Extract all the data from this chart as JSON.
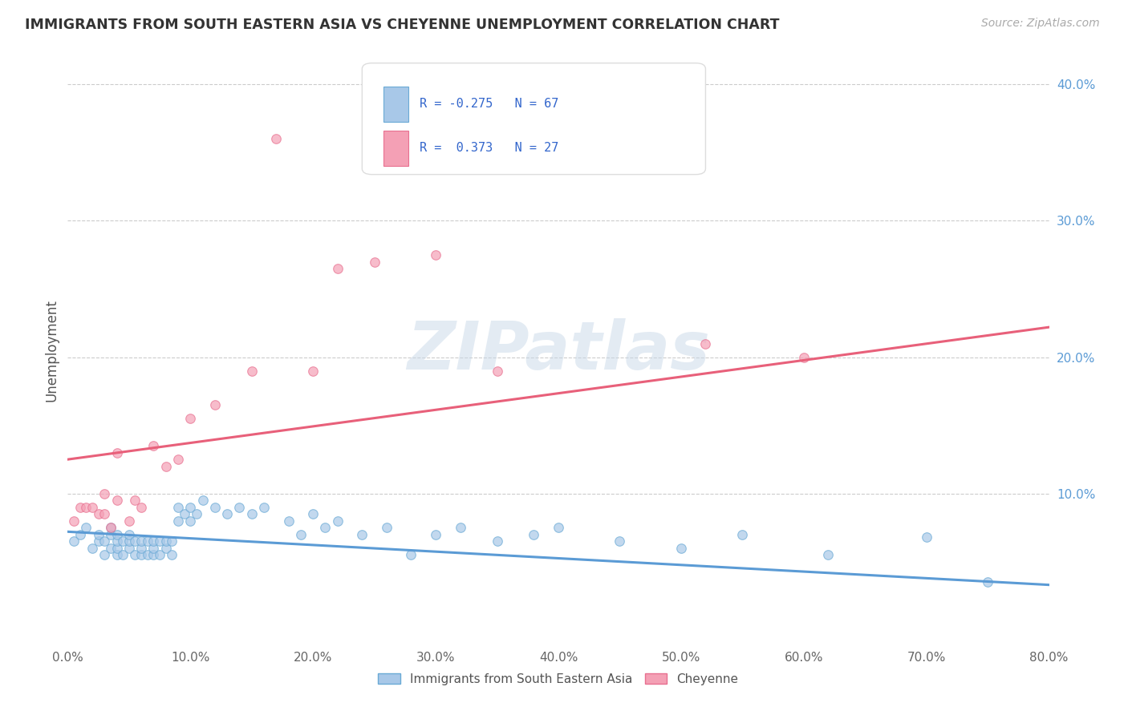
{
  "title": "IMMIGRANTS FROM SOUTH EASTERN ASIA VS CHEYENNE UNEMPLOYMENT CORRELATION CHART",
  "source_text": "Source: ZipAtlas.com",
  "ylabel": "Unemployment",
  "watermark": "ZIPatlas",
  "xlim": [
    0.0,
    0.8
  ],
  "ylim": [
    -0.01,
    0.42
  ],
  "xticks": [
    0.0,
    0.1,
    0.2,
    0.3,
    0.4,
    0.5,
    0.6,
    0.7,
    0.8
  ],
  "xtick_labels": [
    "0.0%",
    "10.0%",
    "20.0%",
    "30.0%",
    "40.0%",
    "50.0%",
    "60.0%",
    "70.0%",
    "80.0%"
  ],
  "yticks_right": [
    0.1,
    0.2,
    0.3,
    0.4
  ],
  "ytick_labels_right": [
    "10.0%",
    "20.0%",
    "30.0%",
    "40.0%"
  ],
  "blue_color": "#a8c8e8",
  "pink_color": "#f4a0b5",
  "blue_edge_color": "#6aaad5",
  "pink_edge_color": "#e87090",
  "blue_line_color": "#5b9bd5",
  "pink_line_color": "#e8607a",
  "blue_scatter_x": [
    0.005,
    0.01,
    0.015,
    0.02,
    0.025,
    0.025,
    0.03,
    0.03,
    0.035,
    0.035,
    0.035,
    0.04,
    0.04,
    0.04,
    0.04,
    0.045,
    0.045,
    0.05,
    0.05,
    0.05,
    0.055,
    0.055,
    0.06,
    0.06,
    0.06,
    0.065,
    0.065,
    0.07,
    0.07,
    0.07,
    0.075,
    0.075,
    0.08,
    0.08,
    0.085,
    0.085,
    0.09,
    0.09,
    0.095,
    0.1,
    0.1,
    0.105,
    0.11,
    0.12,
    0.13,
    0.14,
    0.15,
    0.16,
    0.18,
    0.19,
    0.2,
    0.21,
    0.22,
    0.24,
    0.26,
    0.28,
    0.3,
    0.32,
    0.35,
    0.38,
    0.4,
    0.45,
    0.5,
    0.55,
    0.62,
    0.7,
    0.75
  ],
  "blue_scatter_y": [
    0.065,
    0.07,
    0.075,
    0.06,
    0.065,
    0.07,
    0.055,
    0.065,
    0.06,
    0.07,
    0.075,
    0.055,
    0.06,
    0.065,
    0.07,
    0.055,
    0.065,
    0.06,
    0.065,
    0.07,
    0.055,
    0.065,
    0.055,
    0.06,
    0.065,
    0.055,
    0.065,
    0.055,
    0.06,
    0.065,
    0.055,
    0.065,
    0.06,
    0.065,
    0.055,
    0.065,
    0.08,
    0.09,
    0.085,
    0.08,
    0.09,
    0.085,
    0.095,
    0.09,
    0.085,
    0.09,
    0.085,
    0.09,
    0.08,
    0.07,
    0.085,
    0.075,
    0.08,
    0.07,
    0.075,
    0.055,
    0.07,
    0.075,
    0.065,
    0.07,
    0.075,
    0.065,
    0.06,
    0.07,
    0.055,
    0.068,
    0.035
  ],
  "pink_scatter_x": [
    0.005,
    0.01,
    0.015,
    0.02,
    0.025,
    0.03,
    0.03,
    0.035,
    0.04,
    0.04,
    0.05,
    0.055,
    0.06,
    0.07,
    0.08,
    0.09,
    0.1,
    0.12,
    0.15,
    0.17,
    0.2,
    0.22,
    0.25,
    0.3,
    0.35,
    0.52,
    0.6
  ],
  "pink_scatter_y": [
    0.08,
    0.09,
    0.09,
    0.09,
    0.085,
    0.085,
    0.1,
    0.075,
    0.095,
    0.13,
    0.08,
    0.095,
    0.09,
    0.135,
    0.12,
    0.125,
    0.155,
    0.165,
    0.19,
    0.36,
    0.19,
    0.265,
    0.27,
    0.275,
    0.19,
    0.21,
    0.2
  ],
  "blue_trend_x": [
    0.0,
    0.8
  ],
  "blue_trend_y": [
    0.072,
    0.033
  ],
  "pink_trend_x": [
    0.0,
    0.8
  ],
  "pink_trend_y": [
    0.125,
    0.222
  ]
}
